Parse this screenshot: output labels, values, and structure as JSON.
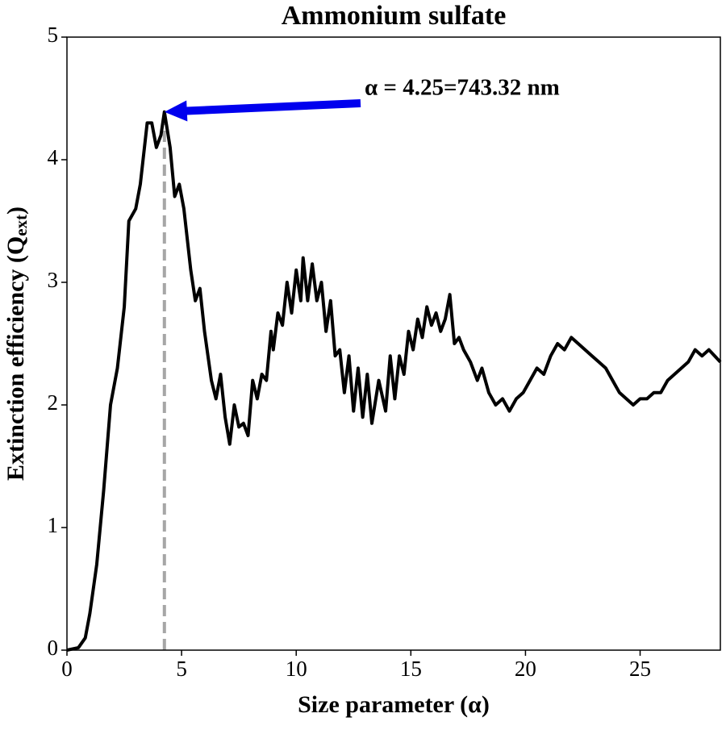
{
  "chart_data": {
    "type": "line",
    "title": "Ammonium sulfate",
    "xlabel": "Size parameter (α)",
    "ylabel": [
      "Extinction efficiency (Q",
      "ext",
      ")"
    ],
    "xlim": [
      0,
      28.5
    ],
    "ylim": [
      0,
      5
    ],
    "xticks": [
      0,
      5,
      10,
      15,
      20,
      25
    ],
    "yticks": [
      0,
      1,
      2,
      3,
      4,
      5
    ],
    "color": "#000000",
    "x": [
      0,
      0.5,
      0.8,
      1.0,
      1.3,
      1.6,
      1.9,
      2.2,
      2.5,
      2.7,
      3.0,
      3.2,
      3.5,
      3.7,
      3.9,
      4.1,
      4.25,
      4.5,
      4.7,
      4.9,
      5.1,
      5.4,
      5.6,
      5.8,
      6.0,
      6.3,
      6.5,
      6.7,
      6.9,
      7.1,
      7.3,
      7.5,
      7.7,
      7.9,
      8.1,
      8.3,
      8.5,
      8.7,
      8.9,
      9.0,
      9.2,
      9.4,
      9.6,
      9.8,
      10.0,
      10.2,
      10.3,
      10.5,
      10.7,
      10.9,
      11.1,
      11.3,
      11.5,
      11.7,
      11.9,
      12.1,
      12.3,
      12.5,
      12.7,
      12.9,
      13.1,
      13.3,
      13.6,
      13.9,
      14.1,
      14.3,
      14.5,
      14.7,
      14.9,
      15.1,
      15.3,
      15.5,
      15.7,
      15.9,
      16.1,
      16.3,
      16.5,
      16.7,
      16.9,
      17.1,
      17.3,
      17.6,
      17.9,
      18.1,
      18.4,
      18.7,
      19.0,
      19.3,
      19.6,
      19.9,
      20.2,
      20.5,
      20.8,
      21.1,
      21.4,
      21.7,
      22.0,
      22.3,
      22.6,
      22.9,
      23.2,
      23.5,
      23.8,
      24.1,
      24.4,
      24.7,
      25.0,
      25.3,
      25.6,
      25.9,
      26.2,
      26.5,
      26.8,
      27.1,
      27.4,
      27.7,
      28.0,
      28.5
    ],
    "values": [
      0,
      0.02,
      0.1,
      0.3,
      0.7,
      1.3,
      2.0,
      2.3,
      2.8,
      3.5,
      3.6,
      3.8,
      4.3,
      4.3,
      4.1,
      4.2,
      4.39,
      4.1,
      3.7,
      3.8,
      3.6,
      3.1,
      2.85,
      2.95,
      2.6,
      2.2,
      2.05,
      2.25,
      1.9,
      1.68,
      2.0,
      1.82,
      1.85,
      1.75,
      2.2,
      2.05,
      2.25,
      2.2,
      2.6,
      2.45,
      2.75,
      2.65,
      3.0,
      2.75,
      3.1,
      2.85,
      3.2,
      2.85,
      3.15,
      2.85,
      3.0,
      2.6,
      2.85,
      2.4,
      2.45,
      2.1,
      2.4,
      1.95,
      2.3,
      1.9,
      2.25,
      1.85,
      2.2,
      1.95,
      2.4,
      2.05,
      2.4,
      2.25,
      2.6,
      2.45,
      2.7,
      2.55,
      2.8,
      2.65,
      2.75,
      2.6,
      2.7,
      2.9,
      2.5,
      2.55,
      2.45,
      2.35,
      2.2,
      2.3,
      2.1,
      2.0,
      2.05,
      1.95,
      2.05,
      2.1,
      2.2,
      2.3,
      2.25,
      2.4,
      2.5,
      2.45,
      2.55,
      2.5,
      2.45,
      2.4,
      2.35,
      2.3,
      2.2,
      2.1,
      2.05,
      2.0,
      2.05,
      2.05,
      2.1,
      2.1,
      2.2,
      2.25,
      2.3,
      2.35,
      2.45,
      2.4,
      2.45,
      2.35
    ],
    "annotation": {
      "text": "α = 4.25=743.32 nm",
      "x": 4.25,
      "y": 4.39,
      "color": "#0000ee",
      "line_color": "#a6a6a6"
    }
  }
}
